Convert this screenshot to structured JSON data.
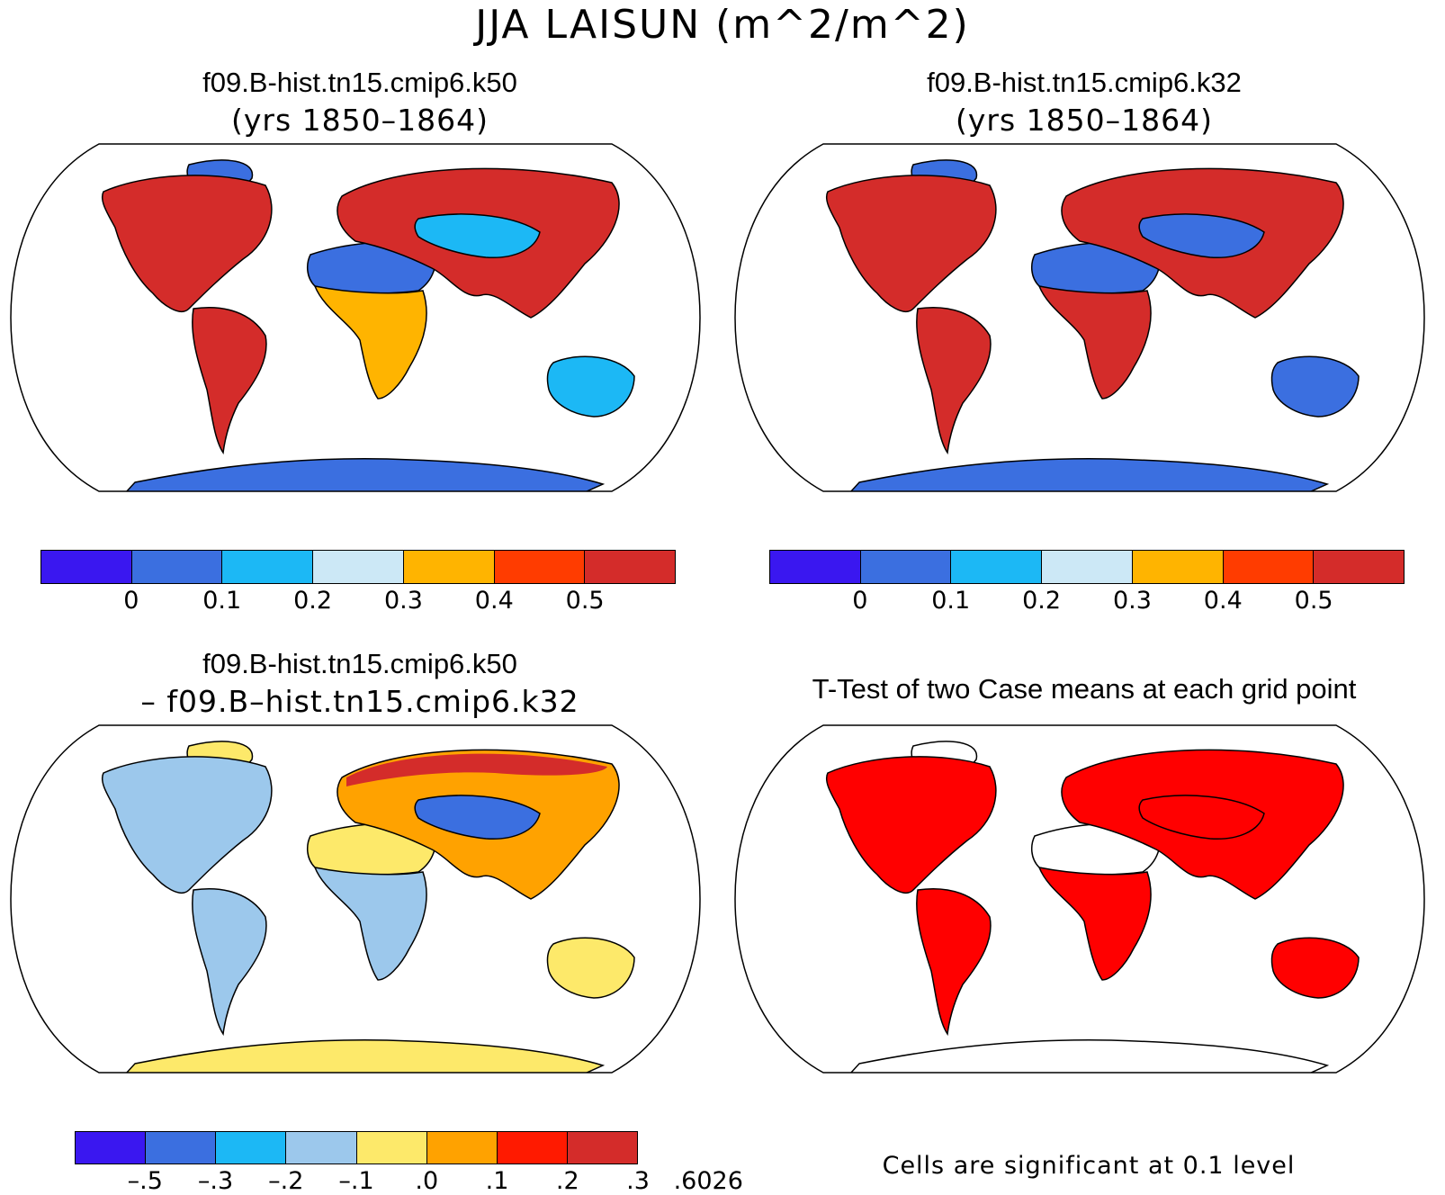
{
  "figure": {
    "title": "JJA LAISUN (m^2/m^2)"
  },
  "panels": {
    "k50": {
      "title": "f09.B-hist.tn15.cmip6.k50",
      "subtitle": "(yrs 1850–1864)",
      "colors": {
        "ocean": "#ffffff",
        "antarctica": "#3b6fe0",
        "greenland": "#3b6fe0",
        "north_america": "#d42c2a",
        "south_america": "#d42c2a",
        "africa_south": "#ffb400",
        "sahara": "#3b6fe0",
        "eurasia": "#d42c2a",
        "australia": "#1cb8f5",
        "asia_interior": "#1cb8f5"
      }
    },
    "k32": {
      "title": "f09.B-hist.tn15.cmip6.k32",
      "subtitle": "(yrs 1850–1864)",
      "colors": {
        "ocean": "#ffffff",
        "antarctica": "#3b6fe0",
        "greenland": "#3b6fe0",
        "north_america": "#d42c2a",
        "south_america": "#d42c2a",
        "africa_south": "#d42c2a",
        "sahara": "#3b6fe0",
        "eurasia": "#d42c2a",
        "australia": "#3b6fe0",
        "asia_interior": "#3b6fe0"
      }
    },
    "diff": {
      "title": "f09.B-hist.tn15.cmip6.k50",
      "subtitle": "– f09.B–hist.tn15.cmip6.k32",
      "colors": {
        "ocean": "#ffffff",
        "antarctica": "#fde96a",
        "greenland": "#fde96a",
        "north_america": "#9cc8ec",
        "south_america": "#9cc8ec",
        "africa_south": "#9cc8ec",
        "sahara": "#fde96a",
        "eurasia": "#ffa200",
        "australia": "#fde96a",
        "asia_interior": "#3b6fe0",
        "arctic_rim": "#d42c2a"
      }
    },
    "ttest": {
      "title": "T-Test of two Case means at each grid point",
      "note": "Cells are significant at 0.1 level",
      "colors": {
        "ocean": "#ffffff",
        "antarctica": "#ffffff",
        "greenland": "#ffffff",
        "north_america": "#ff0000",
        "south_america": "#ff0000",
        "africa_south": "#ff0000",
        "sahara": "#ffffff",
        "eurasia": "#ff0000",
        "australia": "#ff0000",
        "asia_interior": "#ff0000"
      }
    }
  },
  "colorbars": {
    "main": {
      "colors": [
        "#3a17f0",
        "#3b6fe0",
        "#1cb8f5",
        "#cce8f6",
        "#ffb400",
        "#ff3c00",
        "#d42c2a"
      ],
      "labels": [
        "0",
        "0.1",
        "0.2",
        "0.3",
        "0.4",
        "0.5"
      ]
    },
    "diff": {
      "colors": [
        "#3a17f0",
        "#3b6fe0",
        "#1cb8f5",
        "#9cc8ec",
        "#fde96a",
        "#ffa200",
        "#ff1a00",
        "#d42c2a"
      ],
      "labels": [
        "–.5",
        "–.3",
        "–.2",
        "–.1",
        ".0",
        ".1",
        ".2",
        ".3",
        ".6026"
      ]
    }
  }
}
